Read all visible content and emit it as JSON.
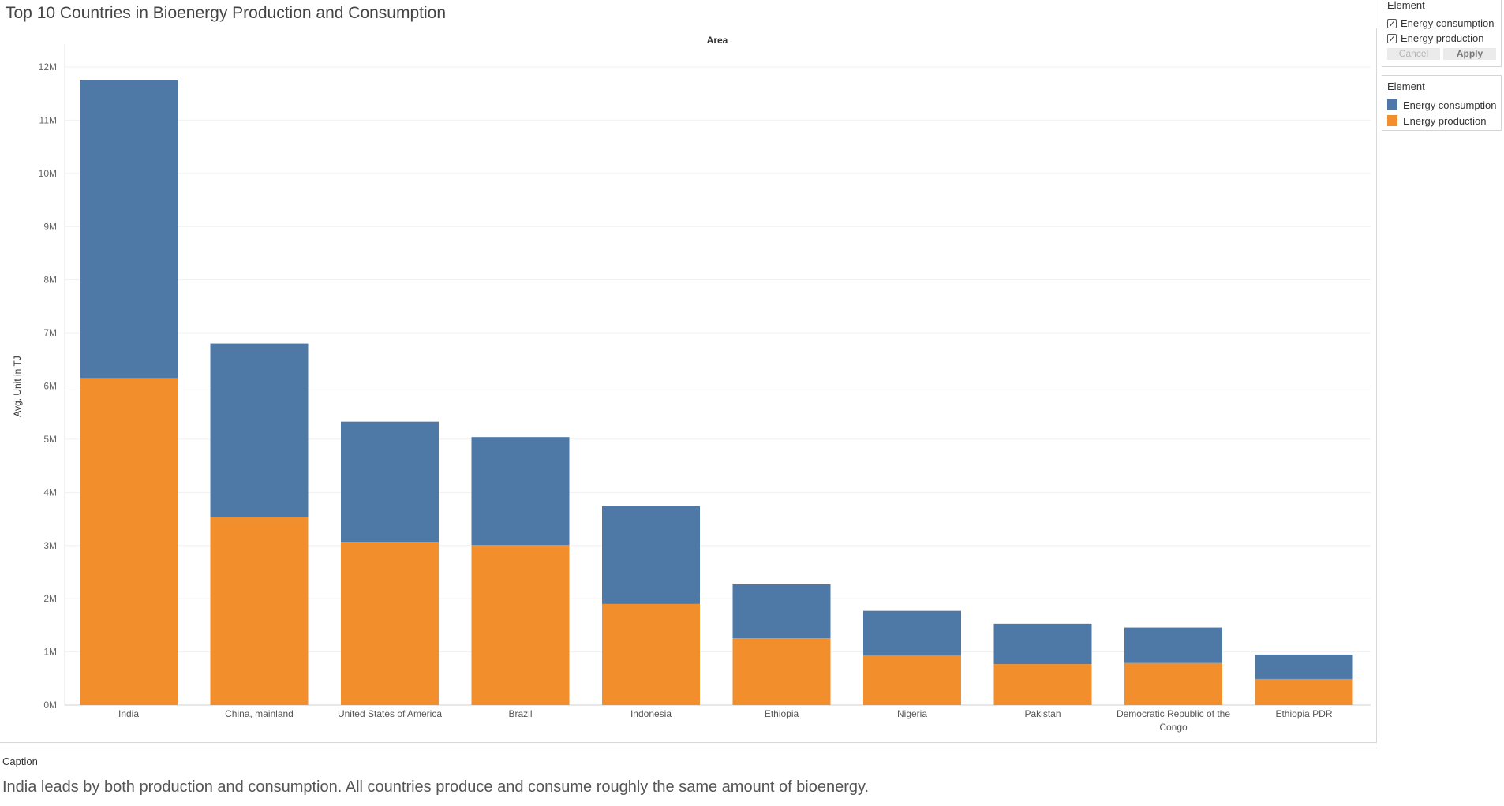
{
  "title": "Top 10 Countries in Bioenergy Production and Consumption",
  "caption": {
    "label": "Caption",
    "text": "India leads by both production and consumption. All countries produce and consume roughly the same amount of bioenergy."
  },
  "filter": {
    "title": "Element",
    "items": [
      {
        "label": "Energy consumption",
        "checked": true
      },
      {
        "label": "Energy production",
        "checked": true
      }
    ],
    "cancel_label": "Cancel",
    "apply_label": "Apply"
  },
  "legend": {
    "title": "Element",
    "items": [
      {
        "label": "Energy consumption",
        "color": "#4e79a7"
      },
      {
        "label": "Energy production",
        "color": "#f28e2b"
      }
    ]
  },
  "chart_data": {
    "type": "bar",
    "stacked": true,
    "title": "Top 10 Countries in Bioenergy Production and Consumption",
    "column_header": "Area",
    "ylabel": "Avg. Unit in TJ",
    "ylim": [
      0,
      12000000
    ],
    "yticks": [
      0,
      1000000,
      2000000,
      3000000,
      4000000,
      5000000,
      6000000,
      7000000,
      8000000,
      9000000,
      10000000,
      11000000,
      12000000
    ],
    "ytick_labels": [
      "0M",
      "1M",
      "2M",
      "3M",
      "4M",
      "5M",
      "6M",
      "7M",
      "8M",
      "9M",
      "10M",
      "11M",
      "12M"
    ],
    "grid": true,
    "legend_position": "right",
    "categories": [
      "India",
      "China, mainland",
      "United States of America",
      "Brazil",
      "Indonesia",
      "Ethiopia",
      "Nigeria",
      "Pakistan",
      "Democratic Republic of the Congo",
      "Ethiopia PDR"
    ],
    "series": [
      {
        "name": "Energy production",
        "color": "#f28e2b",
        "values": [
          6150000,
          3530000,
          3070000,
          3010000,
          1900000,
          1260000,
          930000,
          770000,
          790000,
          490000
        ]
      },
      {
        "name": "Energy consumption",
        "color": "#4e79a7",
        "values": [
          5600000,
          3270000,
          2260000,
          2030000,
          1840000,
          1010000,
          840000,
          760000,
          670000,
          460000
        ]
      }
    ]
  }
}
